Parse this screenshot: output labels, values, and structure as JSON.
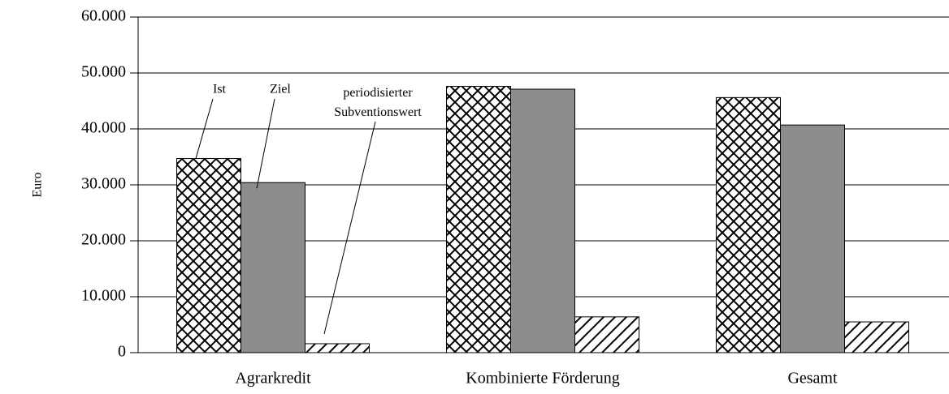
{
  "chart_data": {
    "type": "bar",
    "categories": [
      "Agrarkredit",
      "Kombinierte Förderung",
      "Gesamt"
    ],
    "series": [
      {
        "name": "Ist",
        "color": "#000000",
        "pattern": "crosshatch",
        "values": [
          34700,
          47600,
          45600
        ]
      },
      {
        "name": "Ziel",
        "color": "#8c8c8c",
        "pattern": "solid",
        "values": [
          30400,
          47100,
          40700
        ]
      },
      {
        "name": "periodisierter Subventionswert",
        "color": "#000000",
        "pattern": "diagonal",
        "values": [
          1600,
          6400,
          5500
        ]
      }
    ],
    "ylabel": "Euro",
    "ylim": [
      0,
      60000
    ],
    "yticks": [
      0,
      {
        "value": 10000,
        "label": "10.000"
      },
      {
        "value": 20000,
        "label": "20.000"
      },
      {
        "value": 30000,
        "label": "30.000"
      },
      {
        "value": 40000,
        "label": "40.000"
      },
      {
        "value": 50000,
        "label": "50.000"
      },
      {
        "value": 60000,
        "label": "60.000"
      }
    ],
    "grid": true
  }
}
